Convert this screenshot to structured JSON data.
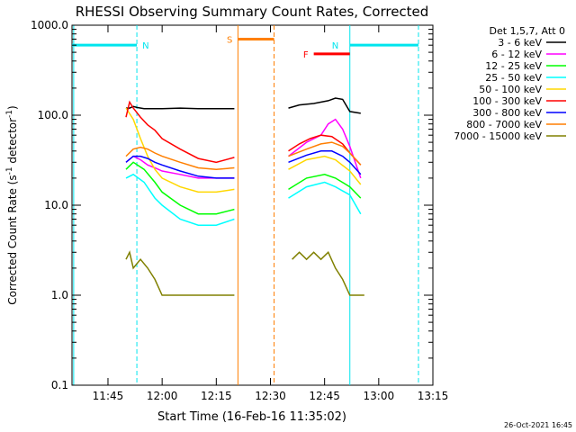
{
  "chart_data": {
    "type": "line",
    "title": "RHESSI Observing Summary Count Rates, Corrected",
    "xlabel": "Start Time (16-Feb-16 11:35:02)",
    "ylabel": "Corrected Count Rate (s⁻¹ detector⁻¹)",
    "ylabel_main": "Corrected Count Rate (s",
    "ylabel_sup1": "-1",
    "ylabel_mid": " detector",
    "ylabel_sup2": "-1",
    "ylabel_end": ")",
    "yscale": "log",
    "ylim": [
      0.1,
      1000
    ],
    "xlim": [
      "11:35:02",
      "13:15:00"
    ],
    "x_ticks": [
      "11:45",
      "12:00",
      "12:15",
      "12:30",
      "12:45",
      "13:00",
      "13:15"
    ],
    "y_ticks": [
      "0.1",
      "1.0",
      "10.0",
      "100.0",
      "1000.0"
    ],
    "legend_header": "Det 1,5,7, Att 0",
    "legend_position": "right",
    "footer_date": "26-Oct-2021 16:45",
    "intervals": [
      {
        "label": "N",
        "kind": "night",
        "color": "#00e5ee",
        "start": "11:35:02",
        "end": "11:53:00",
        "level": 600
      },
      {
        "label": "S",
        "kind": "saa",
        "color": "#ff7f00",
        "start": "12:21:00",
        "end": "12:31:00",
        "level": 700
      },
      {
        "label": "N",
        "kind": "night",
        "color": "#00e5ee",
        "start": "12:52:00",
        "end": "13:11:00",
        "level": 600
      },
      {
        "label": "F",
        "kind": "flare",
        "color": "#ff0000",
        "start": "12:42:00",
        "end": "12:52:00",
        "level": 480
      }
    ],
    "vertical_markers": [
      {
        "time": "11:35:30",
        "style": "solid",
        "color": "#00e5ee"
      },
      {
        "time": "11:53:00",
        "style": "dashed",
        "color": "#00e5ee"
      },
      {
        "time": "12:21:00",
        "style": "solid",
        "color": "#ff7f00"
      },
      {
        "time": "12:31:00",
        "style": "dashed",
        "color": "#ff7f00"
      },
      {
        "time": "12:52:00",
        "style": "solid",
        "color": "#00e5ee"
      },
      {
        "time": "13:11:00",
        "style": "dashed",
        "color": "#00e5ee"
      }
    ],
    "series": [
      {
        "name": "3 - 6 keV",
        "color": "#000000",
        "segments": [
          {
            "x": [
              "11:50:00",
              "11:51:00",
              "11:52:00",
              "11:53:00",
              "11:55:00",
              "12:00:00",
              "12:05:00",
              "12:10:00",
              "12:15:00",
              "12:20:00"
            ],
            "y": [
              120,
              120,
              125,
              122,
              118,
              118,
              120,
              118,
              118,
              118
            ]
          },
          {
            "x": [
              "12:35:00",
              "12:38:00",
              "12:42:00",
              "12:46:00",
              "12:48:00",
              "12:50:00",
              "12:52:00",
              "12:55:00"
            ],
            "y": [
              120,
              130,
              135,
              145,
              155,
              150,
              110,
              105
            ]
          }
        ]
      },
      {
        "name": "6 - 12 keV",
        "color": "#ff00ff",
        "segments": [
          {
            "x": [
              "11:50:00",
              "11:52:00",
              "11:54:00",
              "11:56:00",
              "11:58:00",
              "12:00:00",
              "12:05:00",
              "12:10:00",
              "12:15:00",
              "12:20:00"
            ],
            "y": [
              30,
              35,
              32,
              28,
              26,
              24,
              22,
              20,
              20,
              20
            ]
          },
          {
            "x": [
              "12:35:00",
              "12:40:00",
              "12:44:00",
              "12:46:00",
              "12:48:00",
              "12:50:00",
              "12:52:00",
              "12:55:00"
            ],
            "y": [
              35,
              50,
              60,
              80,
              90,
              70,
              45,
              20
            ]
          }
        ]
      },
      {
        "name": "12 - 25 keV",
        "color": "#00ff00",
        "segments": [
          {
            "x": [
              "11:50:00",
              "11:52:00",
              "11:55:00",
              "11:58:00",
              "12:00:00",
              "12:05:00",
              "12:10:00",
              "12:15:00",
              "12:20:00"
            ],
            "y": [
              25,
              30,
              25,
              18,
              14,
              10,
              8,
              8,
              9
            ]
          },
          {
            "x": [
              "12:35:00",
              "12:40:00",
              "12:45:00",
              "12:48:00",
              "12:52:00",
              "12:55:00"
            ],
            "y": [
              15,
              20,
              22,
              20,
              16,
              12
            ]
          }
        ]
      },
      {
        "name": "25 - 50 keV",
        "color": "#00ffff",
        "segments": [
          {
            "x": [
              "11:50:00",
              "11:52:00",
              "11:55:00",
              "11:58:00",
              "12:00:00",
              "12:05:00",
              "12:10:00",
              "12:15:00",
              "12:20:00"
            ],
            "y": [
              20,
              22,
              18,
              12,
              10,
              7,
              6,
              6,
              7
            ]
          },
          {
            "x": [
              "12:35:00",
              "12:40:00",
              "12:45:00",
              "12:48:00",
              "12:52:00",
              "12:55:00"
            ],
            "y": [
              12,
              16,
              18,
              16,
              13,
              8
            ]
          }
        ]
      },
      {
        "name": "50 - 100 keV",
        "color": "#ffd700",
        "segments": [
          {
            "x": [
              "11:50:00",
              "11:52:00",
              "11:54:00",
              "11:56:00",
              "11:58:00",
              "12:00:00",
              "12:05:00",
              "12:10:00",
              "12:15:00",
              "12:20:00"
            ],
            "y": [
              120,
              90,
              55,
              35,
              25,
              20,
              16,
              14,
              14,
              15
            ]
          },
          {
            "x": [
              "12:35:00",
              "12:40:00",
              "12:45:00",
              "12:48:00",
              "12:52:00",
              "12:55:00"
            ],
            "y": [
              25,
              32,
              35,
              32,
              24,
              17
            ]
          }
        ]
      },
      {
        "name": "100 - 300 keV",
        "color": "#ff0000",
        "segments": [
          {
            "x": [
              "11:50:00",
              "11:51:00",
              "11:52:00",
              "11:54:00",
              "11:56:00",
              "11:58:00",
              "12:00:00",
              "12:05:00",
              "12:10:00",
              "12:15:00",
              "12:20:00"
            ],
            "y": [
              95,
              140,
              120,
              95,
              78,
              68,
              55,
              42,
              33,
              30,
              34
            ]
          },
          {
            "x": [
              "12:35:00",
              "12:38:00",
              "12:41:00",
              "12:44:00",
              "12:47:00",
              "12:50:00",
              "12:52:00",
              "12:55:00"
            ],
            "y": [
              40,
              48,
              55,
              60,
              58,
              48,
              38,
              28
            ]
          }
        ]
      },
      {
        "name": "300 - 800 keV",
        "color": "#0000ff",
        "segments": [
          {
            "x": [
              "11:50:00",
              "11:52:00",
              "11:54:00",
              "11:56:00",
              "11:58:00",
              "12:00:00",
              "12:05:00",
              "12:10:00",
              "12:15:00",
              "12:20:00"
            ],
            "y": [
              30,
              35,
              35,
              33,
              30,
              28,
              24,
              21,
              20,
              20
            ]
          },
          {
            "x": [
              "12:35:00",
              "12:40:00",
              "12:44:00",
              "12:47:00",
              "12:50:00",
              "12:52:00",
              "12:55:00"
            ],
            "y": [
              30,
              36,
              40,
              40,
              35,
              30,
              22
            ]
          }
        ]
      },
      {
        "name": "800 - 7000 keV",
        "color": "#ff7f00",
        "segments": [
          {
            "x": [
              "11:50:00",
              "11:52:00",
              "11:54:00",
              "11:56:00",
              "11:58:00",
              "12:00:00",
              "12:05:00",
              "12:10:00",
              "12:15:00",
              "12:20:00"
            ],
            "y": [
              35,
              42,
              44,
              42,
              38,
              35,
              30,
              26,
              25,
              26
            ]
          },
          {
            "x": [
              "12:35:00",
              "12:40:00",
              "12:44:00",
              "12:47:00",
              "12:50:00",
              "12:52:00",
              "12:55:00"
            ],
            "y": [
              35,
              42,
              48,
              50,
              45,
              38,
              28
            ]
          }
        ]
      },
      {
        "name": "7000 - 15000 keV",
        "color": "#808000",
        "segments": [
          {
            "x": [
              "11:50:00",
              "11:51:00",
              "11:52:00",
              "11:54:00",
              "11:56:00",
              "11:58:00",
              "12:00:00",
              "12:02:00",
              "12:04:00",
              "12:06:00",
              "12:08:00",
              "12:10:00",
              "12:12:00",
              "12:14:00",
              "12:16:00",
              "12:18:00",
              "12:20:00"
            ],
            "y": [
              2.5,
              3.0,
              2.0,
              2.5,
              2.0,
              1.5,
              1.0,
              1.0,
              1.0,
              1.0,
              1.0,
              1.0,
              1.0,
              1.0,
              1.0,
              1.0,
              1.0
            ]
          },
          {
            "x": [
              "12:36:00",
              "12:38:00",
              "12:40:00",
              "12:42:00",
              "12:44:00",
              "12:46:00",
              "12:48:00",
              "12:50:00",
              "12:52:00",
              "12:54:00",
              "12:56:00"
            ],
            "y": [
              2.5,
              3.0,
              2.5,
              3.0,
              2.5,
              3.0,
              2.0,
              1.5,
              1.0,
              1.0,
              1.0
            ]
          }
        ]
      }
    ]
  }
}
